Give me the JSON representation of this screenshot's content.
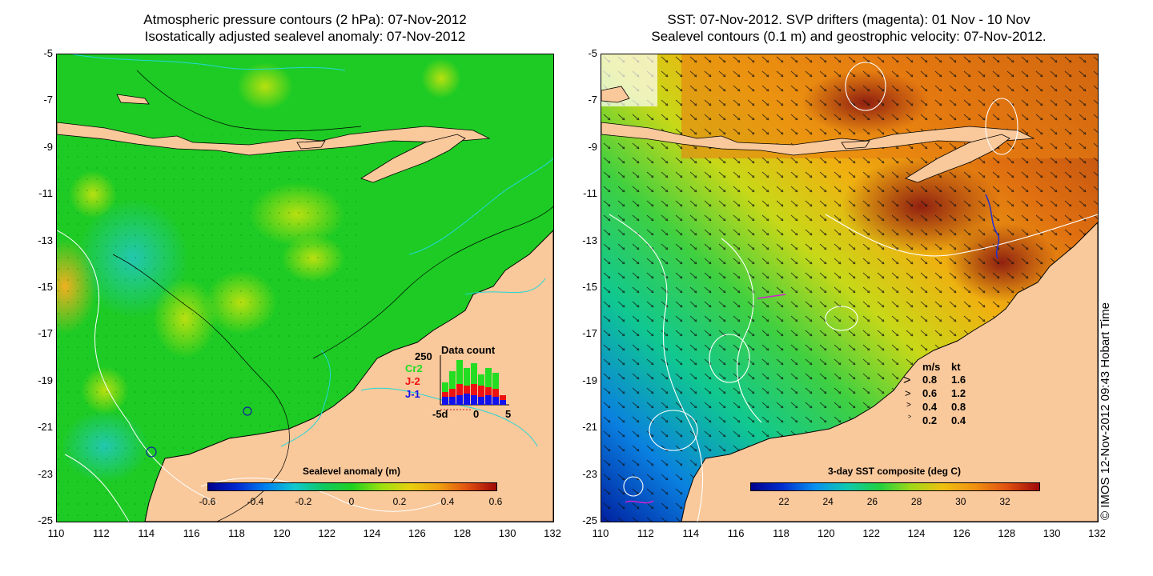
{
  "left_panel": {
    "title_line1": "Atmospheric pressure contours (2 hPa): 07-Nov-2012",
    "title_line2": "Isostatically adjusted sealevel anomaly: 07-Nov-2012",
    "colorbar_title": "Sealevel anomaly (m)",
    "colorbar_ticks": [
      "-0.6",
      "-0.4",
      "-0.2",
      "0",
      "0.2",
      "0.4",
      "0.6"
    ],
    "data_count": {
      "title": "Data count",
      "max_label": "250",
      "series": [
        {
          "name": "Cr2",
          "color": "#22dd22"
        },
        {
          "name": "J-2",
          "color": "#ee1111"
        },
        {
          "name": "J-1",
          "color": "#1111ee"
        }
      ],
      "x_ticks": [
        "-5d",
        "0",
        "5"
      ]
    }
  },
  "right_panel": {
    "title_line1": "SST: 07-Nov-2012. SVP drifters (magenta): 01 Nov - 10 Nov",
    "title_line2": "Sealevel contours (0.1 m) and geostrophic velocity: 07-Nov-2012.",
    "colorbar_title": "3-day SST composite (deg C)",
    "colorbar_ticks": [
      "22",
      "24",
      "26",
      "28",
      "30",
      "32"
    ],
    "velocity_legend": {
      "header_ms": "m/s",
      "header_kt": "kt",
      "rows": [
        {
          "ms": "0.8",
          "kt": "1.6"
        },
        {
          "ms": "0.6",
          "kt": "1.2"
        },
        {
          "ms": "0.4",
          "kt": "0.8"
        },
        {
          "ms": "0.2",
          "kt": "0.4"
        }
      ]
    }
  },
  "axes": {
    "lat_ticks": [
      "-5",
      "-7",
      "-9",
      "-11",
      "-13",
      "-15",
      "-17",
      "-19",
      "-21",
      "-23",
      "-25"
    ],
    "lon_ticks": [
      "110",
      "112",
      "114",
      "116",
      "118",
      "120",
      "122",
      "124",
      "126",
      "128",
      "130",
      "132"
    ]
  },
  "credit": "© IMOS 12-Nov-2012 09:43 Hobart Time",
  "colors": {
    "land": "#f9c89b",
    "ocean_green": "#10cc20",
    "sst_orange": "#e89010"
  }
}
